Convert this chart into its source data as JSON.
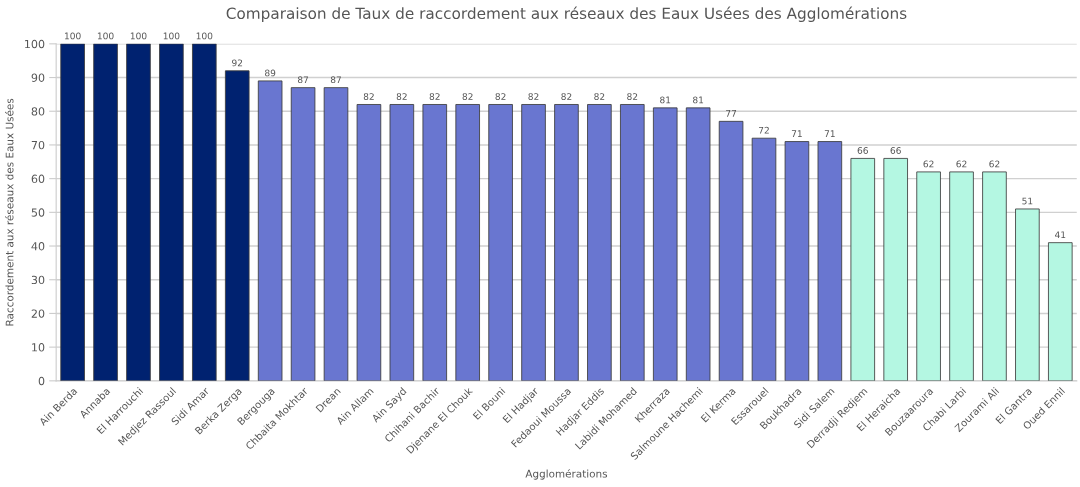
{
  "chart_data": {
    "type": "bar",
    "title": "Comparaison de Taux de raccordement aux réseaux des Eaux Usées des Agglomérations",
    "xlabel": "Agglomérations",
    "ylabel": "Raccordement aux réseaux des Eaux Usées",
    "categories": [
      "Ain Berda",
      "Annaba",
      "El Harrouchi",
      "Medjez Rassoul",
      "Sidi Amar",
      "Berka Zerga",
      "Bergouga",
      "Chbaita Mokhtar",
      "Drean",
      "Ain Allam",
      "Ain Sayd",
      "Chihani Bachir",
      "Djenane El Chouk",
      "El Bouni",
      "El Hadjar",
      "Fedaoui Moussa",
      "Hadjar Eddis",
      "Labidi Mohamed",
      "Kherraza",
      "Salmoune Hachemi",
      "El Kerma",
      "Essarouel",
      "Boukhadra",
      "Sidi Salem",
      "Derradji Redjem",
      "El Heraicha",
      "Bouzaaroura",
      "Chabi Larbi",
      "Zourami Ali",
      "El Gantra",
      "Oued Ennil"
    ],
    "values": [
      100,
      100,
      100,
      100,
      100,
      92,
      89,
      87,
      87,
      82,
      82,
      82,
      82,
      82,
      82,
      82,
      82,
      82,
      81,
      81,
      77,
      72,
      71,
      71,
      66,
      66,
      62,
      62,
      62,
      51,
      41
    ],
    "colors": [
      "#002270",
      "#002270",
      "#002270",
      "#002270",
      "#002270",
      "#002270",
      "#6976d0",
      "#6976d0",
      "#6976d0",
      "#6976d0",
      "#6976d0",
      "#6976d0",
      "#6976d0",
      "#6976d0",
      "#6976d0",
      "#6976d0",
      "#6976d0",
      "#6976d0",
      "#6976d0",
      "#6976d0",
      "#6976d0",
      "#6976d0",
      "#6976d0",
      "#6976d0",
      "#b4f7e2",
      "#b4f7e2",
      "#b4f7e2",
      "#b4f7e2",
      "#b4f7e2",
      "#b4f7e2",
      "#b4f7e2"
    ],
    "ylim": [
      0,
      100
    ],
    "yticks": [
      0,
      10,
      20,
      30,
      40,
      50,
      60,
      70,
      80,
      90,
      100
    ],
    "grid": "y",
    "data_labels": true,
    "legend": false
  }
}
